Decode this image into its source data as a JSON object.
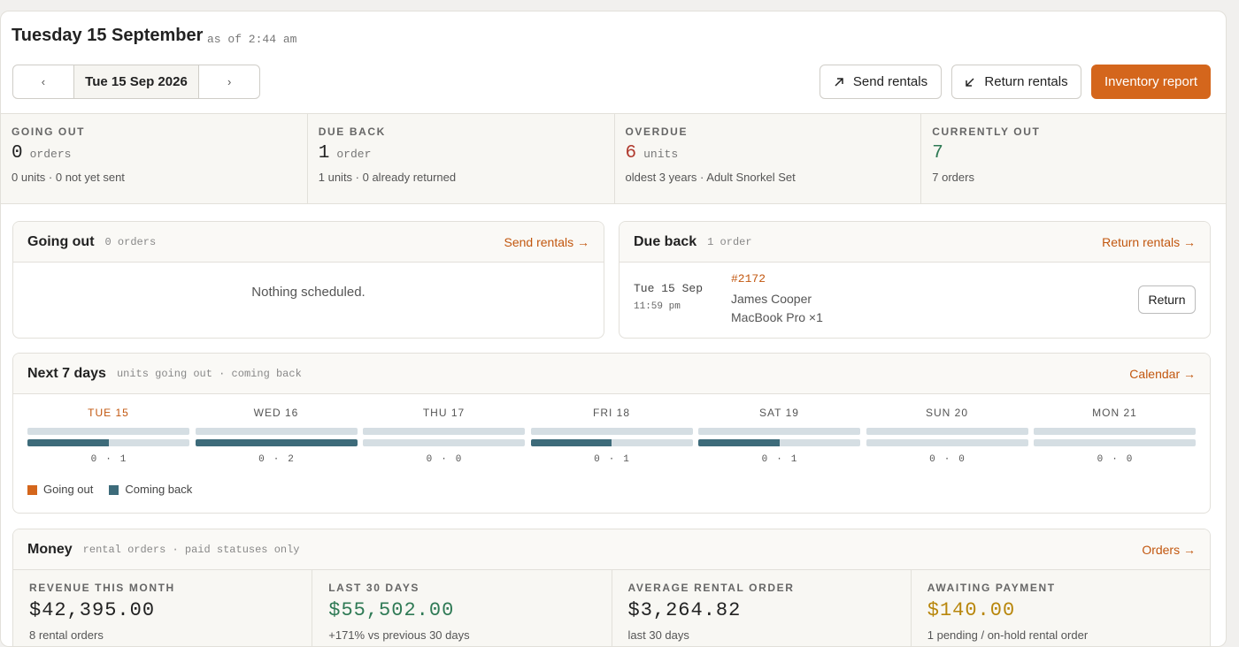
{
  "header": {
    "title": "Tuesday 15 September",
    "as_of": "as of 2:44 am",
    "prev": "‹",
    "date": "Tue 15 Sep 2026",
    "next": "›",
    "actions": [
      "Send rentals",
      "Return rentals",
      "Inventory report"
    ]
  },
  "stats": [
    {
      "label": "GOING OUT",
      "value": 0,
      "unit": "orders",
      "sub": "0 units · 0 not yet sent"
    },
    {
      "label": "DUE BACK",
      "value": 1,
      "unit": "order",
      "sub": "1 units · 0 already returned"
    },
    {
      "label": "OVERDUE",
      "value": 6,
      "unit": "units",
      "sub": "oldest 3 years · Adult Snorkel Set"
    },
    {
      "label": "CURRENTLY OUT",
      "value": 7,
      "sub": "7 orders"
    }
  ],
  "going_out": {
    "title": "Going out",
    "count": "0 orders",
    "link": "Send rentals →",
    "empty": "Nothing scheduled."
  },
  "due_back": {
    "title": "Due back",
    "count": "1 order",
    "link": "Return rentals →",
    "items": [
      {
        "date": "Tue 15 Sep",
        "time": "11:59 pm",
        "order": "#2172",
        "customer": "James Cooper",
        "item": "MacBook Pro ×1",
        "action": "Return"
      }
    ]
  },
  "next7": {
    "title": "Next 7 days",
    "subtitle": "units going out · coming back",
    "link": "Calendar →",
    "separator": "·",
    "days": [
      {
        "label": "TUE 15",
        "out": 0,
        "back": 1
      },
      {
        "label": "WED 16",
        "out": 0,
        "back": 2
      },
      {
        "label": "THU 17",
        "out": 0,
        "back": 0
      },
      {
        "label": "FRI 18",
        "out": 0,
        "back": 1
      },
      {
        "label": "SAT 19",
        "out": 0,
        "back": 1
      },
      {
        "label": "SUN 20",
        "out": 0,
        "back": 0
      },
      {
        "label": "MON 21",
        "out": 0,
        "back": 0
      }
    ],
    "legend": [
      "Going out",
      "Coming back"
    ]
  },
  "money": {
    "title": "Money",
    "subtitle": "rental orders · paid statuses only",
    "link": "Orders →",
    "items": [
      {
        "label": "REVENUE THIS MONTH",
        "value": "$42,395.00",
        "sub": "8 rental orders"
      },
      {
        "label": "LAST 30 DAYS",
        "value": "$55,502.00",
        "sub": "+171% vs previous 30 days"
      },
      {
        "label": "AVERAGE RENTAL ORDER",
        "value": "$3,264.82",
        "sub": "last 30 days"
      },
      {
        "label": "AWAITING PAYMENT",
        "value": "$140.00",
        "sub": "1 pending / on-hold rental order"
      }
    ]
  }
}
